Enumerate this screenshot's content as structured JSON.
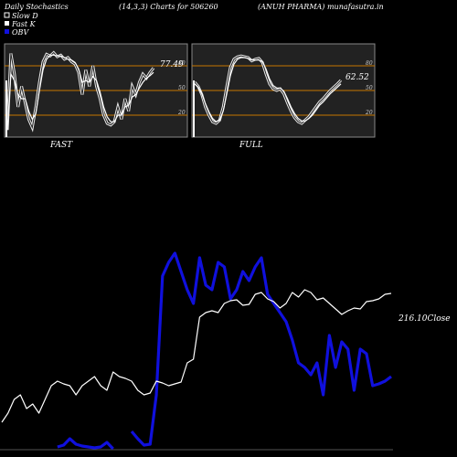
{
  "header": {
    "left": "Daily Stochastics",
    "center": "(14,3,3) Charts for 506260",
    "right": "(ANUH PHARMA) munafasutra.in"
  },
  "legend": [
    {
      "label": "Slow  D",
      "color": "#ffffff"
    },
    {
      "label": "Fast K",
      "color": "#ffffff"
    },
    {
      "label": "OBV",
      "color": "#1010dd"
    }
  ],
  "chart_data": [
    {
      "type": "line",
      "label": "FAST",
      "last_value_label": "77.49",
      "ylim": [
        0,
        100
      ],
      "ticks": [
        20,
        50,
        80
      ],
      "x": [
        0,
        1,
        2,
        3,
        4,
        5,
        6,
        7,
        8,
        9,
        10,
        11,
        12,
        13,
        14,
        15,
        16,
        17,
        18,
        19,
        20,
        21,
        22,
        23,
        24,
        25,
        26,
        27,
        28,
        29,
        30,
        31,
        32,
        33,
        34,
        35,
        36,
        37,
        38,
        39,
        40,
        41
      ],
      "series": [
        {
          "name": "Fast K",
          "values": [
            2,
            95,
            70,
            30,
            55,
            35,
            15,
            5,
            30,
            60,
            85,
            94,
            92,
            96,
            91,
            93,
            88,
            90,
            85,
            82,
            72,
            45,
            75,
            55,
            80,
            55,
            40,
            20,
            10,
            8,
            12,
            30,
            15,
            40,
            25,
            55,
            45,
            60,
            70,
            65,
            72,
            77.49
          ]
        },
        {
          "name": "Slow  D",
          "values": [
            2,
            70,
            62,
            45,
            40,
            40,
            25,
            15,
            22,
            50,
            75,
            88,
            93,
            93,
            92,
            92,
            90,
            88,
            87,
            84,
            76,
            60,
            62,
            60,
            67,
            62,
            48,
            30,
            18,
            12,
            12,
            20,
            20,
            30,
            32,
            42,
            45,
            53,
            60,
            65,
            68,
            72
          ]
        }
      ]
    },
    {
      "type": "line",
      "label": "FULL",
      "last_value_label": "62.52",
      "ylim": [
        0,
        100
      ],
      "ticks": [
        20,
        50,
        80
      ],
      "x": [
        0,
        1,
        2,
        3,
        4,
        5,
        6,
        7,
        8,
        9,
        10,
        11,
        12,
        13,
        14,
        15,
        16,
        17,
        18,
        19,
        20,
        21,
        22,
        23,
        24,
        25,
        26,
        27,
        28,
        29,
        30,
        31,
        32,
        33,
        34,
        35,
        36,
        37,
        38,
        39,
        40,
        41
      ],
      "series": [
        {
          "name": "Fast K",
          "values": [
            60,
            55,
            45,
            30,
            20,
            12,
            10,
            14,
            30,
            55,
            78,
            88,
            91,
            92,
            91,
            90,
            86,
            88,
            89,
            84,
            70,
            58,
            52,
            50,
            52,
            46,
            35,
            25,
            17,
            12,
            10,
            14,
            18,
            24,
            30,
            36,
            40,
            45,
            50,
            54,
            58,
            62.52
          ]
        },
        {
          "name": "Slow  D",
          "values": [
            58,
            54,
            46,
            34,
            24,
            16,
            12,
            14,
            25,
            46,
            68,
            82,
            88,
            90,
            90,
            89,
            87,
            87,
            87,
            85,
            76,
            64,
            56,
            53,
            53,
            49,
            40,
            30,
            22,
            16,
            13,
            13,
            16,
            20,
            26,
            32,
            36,
            41,
            46,
            50,
            54,
            58
          ]
        }
      ]
    },
    {
      "type": "line",
      "label": "Close",
      "last_value_label": "216.10",
      "x": [
        0,
        1,
        2,
        3,
        4,
        5,
        6,
        7,
        8,
        9,
        10,
        11,
        12,
        13,
        14,
        15,
        16,
        17,
        18,
        19,
        20,
        21,
        22,
        23,
        24,
        25,
        26,
        27,
        28,
        29,
        30,
        31,
        32,
        33,
        34,
        35,
        36,
        37,
        38,
        39,
        40,
        41,
        42,
        43,
        44,
        45,
        46,
        47,
        48,
        49,
        50,
        51,
        52,
        53,
        54,
        55,
        56,
        57,
        58,
        59,
        60,
        61,
        62,
        63
      ],
      "series": [
        {
          "name": "OBV",
          "values": [
            null,
            null,
            null,
            null,
            null,
            null,
            null,
            null,
            null,
            3,
            5,
            12,
            6,
            4,
            3,
            2,
            3,
            8,
            1,
            null,
            null,
            20,
            12,
            5,
            6,
            60,
            190,
            205,
            215,
            195,
            175,
            160,
            210,
            180,
            175,
            205,
            200,
            165,
            175,
            195,
            185,
            200,
            210,
            170,
            160,
            150,
            140,
            120,
            95,
            90,
            82,
            95,
            60,
            125,
            90,
            118,
            110,
            65,
            110,
            105,
            70,
            72,
            75,
            80
          ]
        },
        {
          "name": "Close",
          "values": [
            30,
            40,
            55,
            60,
            45,
            50,
            40,
            55,
            70,
            75,
            72,
            70,
            60,
            70,
            75,
            80,
            70,
            65,
            85,
            80,
            78,
            75,
            65,
            60,
            62,
            75,
            73,
            70,
            72,
            74,
            95,
            99,
            145,
            150,
            152,
            150,
            160,
            163,
            164,
            158,
            159,
            170,
            172,
            165,
            162,
            155,
            160,
            172,
            167,
            175,
            172,
            164,
            166,
            160,
            154,
            148,
            152,
            155,
            154,
            162,
            163,
            165,
            170,
            171
          ]
        }
      ]
    }
  ]
}
